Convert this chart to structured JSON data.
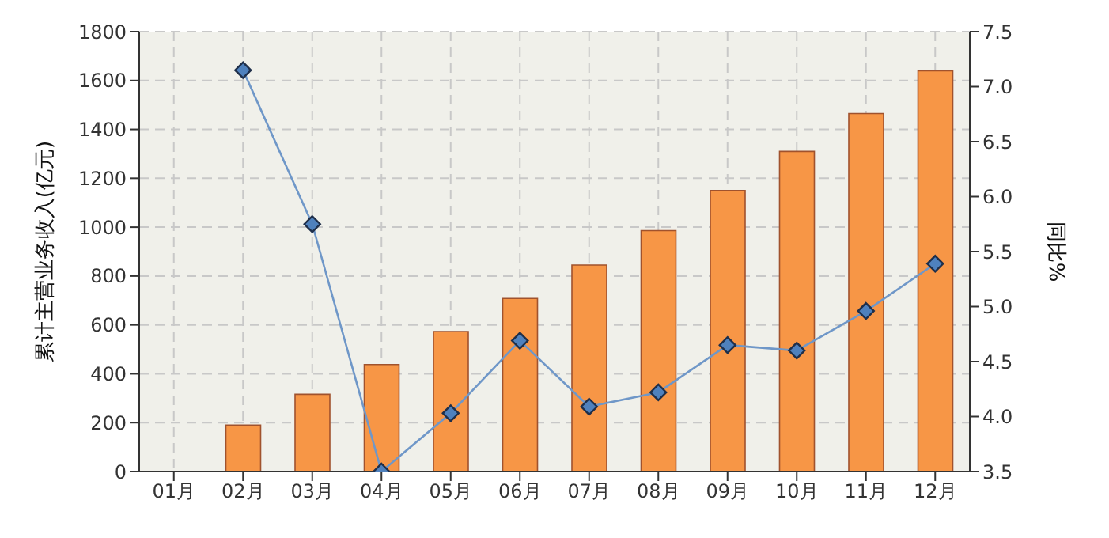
{
  "chart_data": {
    "type": "bar",
    "ylabel": "累计主营业务收入(亿元)",
    "y2label": "同比%",
    "categories": [
      "01月",
      "02月",
      "03月",
      "04月",
      "05月",
      "06月",
      "07月",
      "08月",
      "09月",
      "10月",
      "11月",
      "12月"
    ],
    "series": [
      {
        "color": "#f79646",
        "values": [
          null,
          190,
          316,
          438,
          573,
          708,
          845,
          986,
          1150,
          1310,
          1465,
          1640
        ]
      },
      {
        "type": "line",
        "axis": "y2",
        "color": "#6f97c8",
        "marker": "diamond",
        "values": [
          null,
          7.15,
          5.75,
          3.5,
          4.03,
          4.69,
          4.09,
          4.22,
          4.65,
          4.6,
          4.96,
          5.39
        ]
      }
    ],
    "ylim": [
      0,
      1800
    ],
    "yticks": [
      0,
      200,
      400,
      600,
      800,
      1000,
      1200,
      1400,
      1600,
      1800
    ],
    "y2lim": [
      3.5,
      7.5
    ],
    "y2ticks": [
      {
        "value": 3.5,
        "label": "3.5"
      },
      {
        "value": 4,
        "label": "4.0"
      },
      {
        "value": 4.5,
        "label": "4.5"
      },
      {
        "value": 5,
        "label": "5.0"
      },
      {
        "value": 5.5,
        "label": "5.5"
      },
      {
        "value": 6,
        "label": "6.0"
      },
      {
        "value": 6.5,
        "label": "6.5"
      },
      {
        "value": 7,
        "label": "7.0"
      },
      {
        "value": 7.5,
        "label": "7.5"
      }
    ],
    "grid": true,
    "legend": false,
    "line_style": "solid"
  }
}
